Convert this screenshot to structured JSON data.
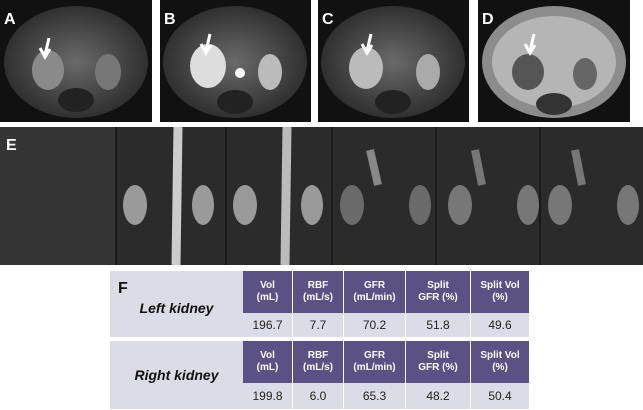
{
  "panels": [
    "A",
    "B",
    "C",
    "D"
  ],
  "panel_e": "E",
  "table": {
    "label": "F",
    "headers": [
      [
        "Vol",
        "(mL)"
      ],
      [
        "RBF",
        "(mL/s)"
      ],
      [
        "GFR",
        "(mL/min)"
      ],
      [
        "Split",
        "GFR (%)"
      ],
      [
        "Split Vol",
        "(%)"
      ]
    ],
    "rows": [
      {
        "name": "Left kidney",
        "values": [
          "196.7",
          "7.7",
          "70.2",
          "51.8",
          "49.6"
        ]
      },
      {
        "name": "Right kidney",
        "values": [
          "199.8",
          "6.0",
          "65.3",
          "48.2",
          "50.4"
        ]
      }
    ]
  }
}
